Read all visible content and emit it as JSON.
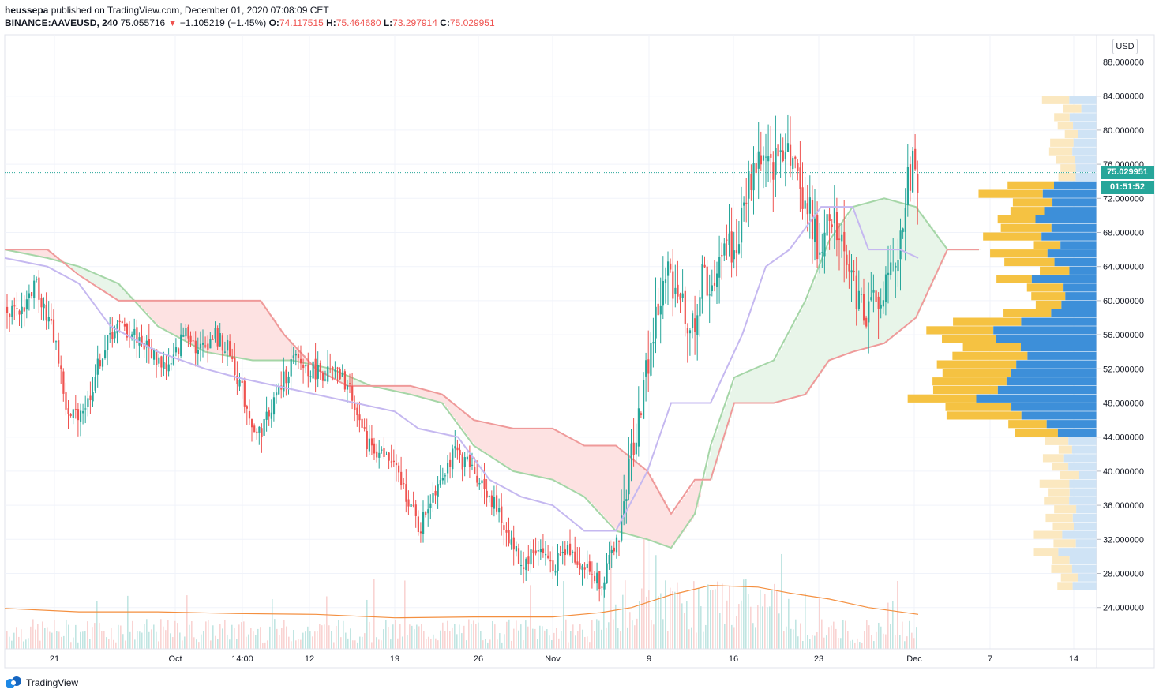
{
  "header": {
    "author": "heussepa",
    "published_text": "published on TradingView.com, December 01, 2020 07:08:09 CET",
    "symbol": "BINANCE:AAVEUSD, 240",
    "price": "75.055716",
    "change_arrow": "▼",
    "change": "−1.105219 (−1.45%)",
    "open_label": "O:",
    "open": "74.117515",
    "high_label": "H:",
    "high": "75.464680",
    "low_label": "L:",
    "low": "73.297914",
    "close_label": "C:",
    "close": "75.029951"
  },
  "price_axis": {
    "currency": "USD",
    "last_price": "75.029951",
    "countdown": "01:51:52",
    "ticks": [
      "88.000000",
      "84.000000",
      "80.000000",
      "76.000000",
      "72.000000",
      "68.000000",
      "64.000000",
      "60.000000",
      "56.000000",
      "52.000000",
      "48.000000",
      "44.000000",
      "40.000000",
      "36.000000",
      "32.000000",
      "28.000000",
      "24.000000"
    ]
  },
  "time_axis": {
    "ticks": [
      "21",
      "Oct",
      "14:00",
      "12",
      "19",
      "26",
      "Nov",
      "9",
      "16",
      "23",
      "Dec",
      "7",
      "14"
    ]
  },
  "brand": {
    "name": "TradingView"
  },
  "colors": {
    "up": "#26a69a",
    "down": "#ef5350",
    "kumo_bull": "#a5d6a7",
    "kumo_bear": "#ef9a9a",
    "kijun": "#b39ddb",
    "volume_ma": "#f48f3f",
    "vp_up": "#f5c242",
    "vp_down": "#3d8fd9"
  },
  "chart_data": {
    "type": "candlestick",
    "symbol": "BINANCE:AAVEUSD",
    "interval": "240",
    "ylim": [
      22,
      90
    ],
    "last_price": 75.029951,
    "anchors": [
      [
        0,
        60.5
      ],
      [
        20,
        58
      ],
      [
        45,
        62
      ],
      [
        70,
        55
      ],
      [
        85,
        46
      ],
      [
        110,
        48
      ],
      [
        125,
        53
      ],
      [
        145,
        57
      ],
      [
        170,
        56
      ],
      [
        200,
        53
      ],
      [
        215,
        52
      ],
      [
        235,
        57
      ],
      [
        250,
        54
      ],
      [
        270,
        56
      ],
      [
        290,
        54
      ],
      [
        310,
        48
      ],
      [
        325,
        44
      ],
      [
        350,
        49
      ],
      [
        370,
        53
      ],
      [
        390,
        52
      ],
      [
        430,
        51
      ],
      [
        445,
        49
      ],
      [
        460,
        44
      ],
      [
        480,
        42
      ],
      [
        495,
        41
      ],
      [
        515,
        37
      ],
      [
        530,
        33
      ],
      [
        545,
        37
      ],
      [
        560,
        40
      ],
      [
        575,
        42
      ],
      [
        600,
        40
      ],
      [
        620,
        37
      ],
      [
        640,
        33
      ],
      [
        660,
        29
      ],
      [
        680,
        31
      ],
      [
        700,
        29
      ],
      [
        720,
        31
      ],
      [
        735,
        29
      ],
      [
        760,
        27
      ],
      [
        775,
        30
      ],
      [
        790,
        36
      ],
      [
        800,
        43
      ],
      [
        815,
        50
      ],
      [
        830,
        58
      ],
      [
        845,
        63
      ],
      [
        860,
        61
      ],
      [
        875,
        56
      ],
      [
        890,
        63
      ],
      [
        905,
        60
      ],
      [
        915,
        68
      ],
      [
        930,
        65
      ],
      [
        945,
        73
      ],
      [
        960,
        77
      ],
      [
        975,
        75
      ],
      [
        995,
        79
      ],
      [
        1010,
        74
      ],
      [
        1025,
        70
      ],
      [
        1035,
        66
      ],
      [
        1050,
        71
      ],
      [
        1065,
        68
      ],
      [
        1080,
        62
      ],
      [
        1095,
        58
      ],
      [
        1110,
        61
      ],
      [
        1125,
        62
      ],
      [
        1135,
        64
      ],
      [
        1145,
        72
      ],
      [
        1155,
        76
      ],
      [
        1163,
        74
      ]
    ],
    "kumo_a": [
      [
        6,
        66
      ],
      [
        60,
        65
      ],
      [
        100,
        64
      ],
      [
        150,
        62
      ],
      [
        200,
        57
      ],
      [
        260,
        54
      ],
      [
        320,
        53
      ],
      [
        370,
        53
      ],
      [
        420,
        52
      ],
      [
        470,
        50
      ],
      [
        520,
        49
      ],
      [
        560,
        48
      ],
      [
        600,
        43
      ],
      [
        650,
        40
      ],
      [
        700,
        39
      ],
      [
        740,
        37
      ],
      [
        780,
        33
      ],
      [
        820,
        32
      ],
      [
        850,
        31
      ],
      [
        880,
        35
      ],
      [
        900,
        43
      ],
      [
        930,
        51
      ],
      [
        980,
        53
      ],
      [
        1020,
        60
      ],
      [
        1050,
        67
      ],
      [
        1080,
        71
      ],
      [
        1120,
        72
      ],
      [
        1160,
        71
      ],
      [
        1200,
        66
      ],
      [
        1240,
        66
      ]
    ],
    "kumo_b": [
      [
        6,
        66
      ],
      [
        60,
        66
      ],
      [
        100,
        63
      ],
      [
        150,
        60
      ],
      [
        200,
        60
      ],
      [
        260,
        60
      ],
      [
        330,
        60
      ],
      [
        360,
        56
      ],
      [
        400,
        52
      ],
      [
        440,
        50
      ],
      [
        480,
        50
      ],
      [
        520,
        50
      ],
      [
        560,
        49
      ],
      [
        600,
        46
      ],
      [
        650,
        45
      ],
      [
        700,
        45
      ],
      [
        740,
        43
      ],
      [
        780,
        43
      ],
      [
        820,
        40
      ],
      [
        850,
        35
      ],
      [
        880,
        39
      ],
      [
        900,
        39
      ],
      [
        930,
        48
      ],
      [
        980,
        48
      ],
      [
        1020,
        49
      ],
      [
        1050,
        53
      ],
      [
        1080,
        54
      ],
      [
        1120,
        55
      ],
      [
        1160,
        58
      ],
      [
        1200,
        66
      ],
      [
        1240,
        66
      ]
    ],
    "kijun": [
      [
        6,
        65
      ],
      [
        60,
        64
      ],
      [
        100,
        62
      ],
      [
        140,
        57
      ],
      [
        200,
        54
      ],
      [
        260,
        52
      ],
      [
        300,
        51
      ],
      [
        350,
        50
      ],
      [
        400,
        49
      ],
      [
        450,
        48
      ],
      [
        500,
        47
      ],
      [
        530,
        45
      ],
      [
        580,
        44
      ],
      [
        620,
        39
      ],
      [
        660,
        37
      ],
      [
        700,
        36
      ],
      [
        740,
        33
      ],
      [
        780,
        33
      ],
      [
        820,
        40
      ],
      [
        850,
        48
      ],
      [
        900,
        48
      ],
      [
        940,
        56
      ],
      [
        970,
        64
      ],
      [
        1000,
        66
      ],
      [
        1040,
        71
      ],
      [
        1080,
        71
      ],
      [
        1100,
        66
      ],
      [
        1140,
        66
      ],
      [
        1163,
        65
      ]
    ],
    "volume_ma": [
      [
        6,
        23.9
      ],
      [
        100,
        23.5
      ],
      [
        200,
        23.5
      ],
      [
        300,
        23.3
      ],
      [
        400,
        23.2
      ],
      [
        500,
        22.8
      ],
      [
        600,
        22.9
      ],
      [
        700,
        22.9
      ],
      [
        760,
        23.4
      ],
      [
        800,
        24
      ],
      [
        850,
        25.5
      ],
      [
        900,
        26.6
      ],
      [
        960,
        26.4
      ],
      [
        1000,
        25.7
      ],
      [
        1050,
        25
      ],
      [
        1100,
        24
      ],
      [
        1163,
        23.2
      ]
    ],
    "volume_profile_range": [
      26,
      84
    ],
    "volume_profile_rows": 58,
    "volume_profile_scale": "relative"
  }
}
